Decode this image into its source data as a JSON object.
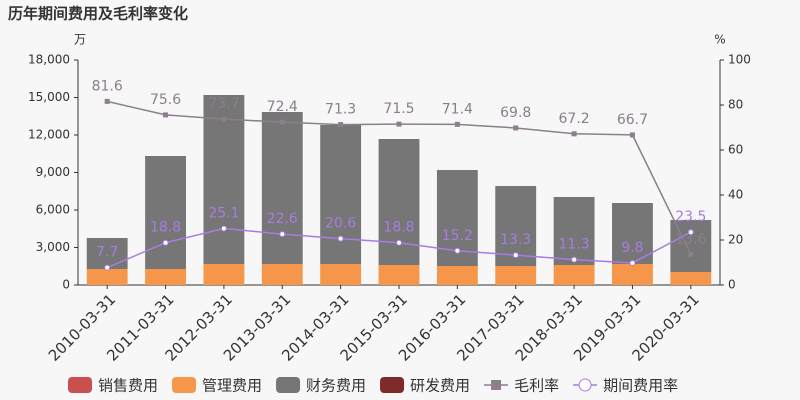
{
  "chart_data": {
    "type": "bar-line",
    "title": "历年期间费用及毛利率变化",
    "y_label": "万",
    "y2_label": "%",
    "categories": [
      "2010-03-31",
      "2011-03-31",
      "2012-03-31",
      "2013-03-31",
      "2014-03-31",
      "2015-03-31",
      "2016-03-31",
      "2017-03-31",
      "2018-03-31",
      "2019-03-31",
      "2020-03-31"
    ],
    "ylim": [
      0,
      18000
    ],
    "yticks": [
      0,
      {
        "value": 3000,
        "label": "3,000"
      },
      {
        "value": 6000,
        "label": "6,000"
      },
      {
        "value": 9000,
        "label": "9,000"
      },
      {
        "value": 12000,
        "label": "12,000"
      },
      {
        "value": 15000,
        "label": "15,000"
      },
      {
        "value": 18000,
        "label": "18,000"
      }
    ],
    "y2lim": [
      0,
      100
    ],
    "y2ticks": [
      0,
      20,
      40,
      60,
      80,
      100
    ],
    "series": [
      {
        "name": "销售费用",
        "color": "#c9504f",
        "kind": "bar",
        "values": [
          0,
          0,
          0,
          0,
          0,
          0,
          0,
          0,
          0,
          0,
          0
        ]
      },
      {
        "name": "管理费用",
        "color": "#f5964a",
        "kind": "bar",
        "values": [
          1280,
          1280,
          1680,
          1680,
          1680,
          1600,
          1520,
          1520,
          1600,
          1680,
          1040
        ]
      },
      {
        "name": "财务费用",
        "color": "#767676",
        "kind": "bar",
        "values": [
          2480,
          9040,
          13520,
          12160,
          11120,
          10080,
          7680,
          6400,
          5440,
          4880,
          4160
        ]
      },
      {
        "name": "研发费用",
        "color": "#7f2a2a",
        "kind": "bar",
        "values": [
          0,
          0,
          0,
          0,
          0,
          0,
          0,
          0,
          0,
          0,
          0
        ]
      },
      {
        "name": "毛利率",
        "color": "#8c7e8c",
        "kind": "line",
        "axis": "y2",
        "values": [
          81.6,
          75.6,
          73.7,
          72.4,
          71.3,
          71.5,
          71.4,
          69.8,
          67.2,
          66.7,
          13.6
        ]
      },
      {
        "name": "期间费用率",
        "color": "#a87ce0",
        "kind": "line",
        "axis": "y2",
        "values": [
          7.7,
          18.8,
          25.1,
          22.6,
          20.6,
          18.8,
          15.2,
          13.3,
          11.3,
          9.8,
          23.5
        ]
      }
    ]
  }
}
